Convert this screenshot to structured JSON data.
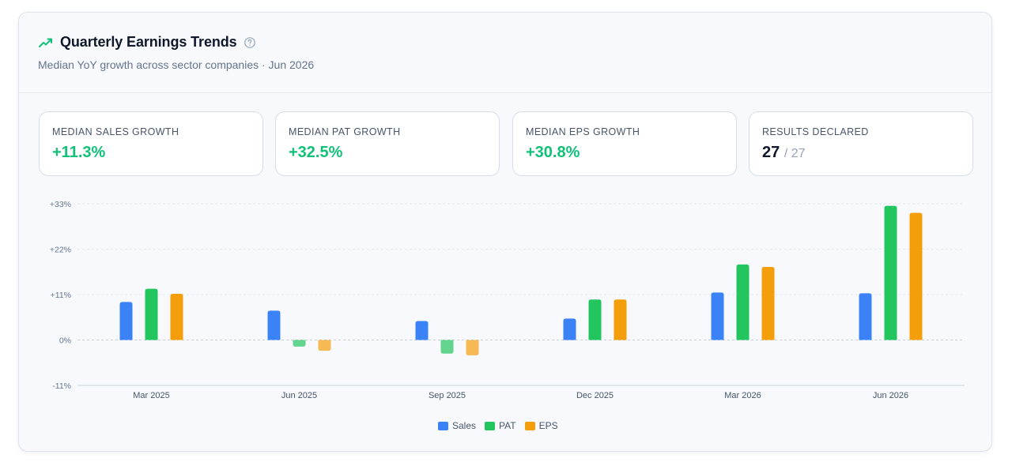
{
  "header": {
    "title": "Quarterly Earnings Trends",
    "subtitle": "Median YoY growth across sector companies · Jun 2026",
    "icon": "trending-up-icon",
    "help_icon": "help-circle-icon"
  },
  "stats": [
    {
      "label": "MEDIAN SALES GROWTH",
      "value": "+11.3%"
    },
    {
      "label": "MEDIAN PAT GROWTH",
      "value": "+32.5%"
    },
    {
      "label": "MEDIAN EPS GROWTH",
      "value": "+30.8%"
    },
    {
      "label": "RESULTS DECLARED",
      "value": "27",
      "total": "/ 27"
    }
  ],
  "colors": {
    "accent": "#10c177",
    "sales": "#3b82f6",
    "pat": "#22c55e",
    "eps": "#f59e0b"
  },
  "chart_data": {
    "type": "bar",
    "categories": [
      "Mar 2025",
      "Jun 2025",
      "Sep 2025",
      "Dec 2025",
      "Mar 2026",
      "Jun 2026"
    ],
    "series": [
      {
        "name": "Sales",
        "color": "#3b82f6",
        "values": [
          9.2,
          7.1,
          4.6,
          5.2,
          11.5,
          11.3
        ]
      },
      {
        "name": "PAT",
        "color": "#22c55e",
        "values": [
          12.4,
          -1.6,
          -3.3,
          9.8,
          18.3,
          32.5
        ]
      },
      {
        "name": "EPS",
        "color": "#f59e0b",
        "values": [
          11.2,
          -2.6,
          -3.7,
          9.8,
          17.7,
          30.8
        ]
      }
    ],
    "y_ticks": [
      "+33%",
      "+22%",
      "+11%",
      "0%",
      "-11%"
    ],
    "y_tick_values": [
      33,
      22,
      11,
      0,
      -11
    ],
    "ylim": [
      -11,
      33
    ],
    "grid": true,
    "legend_position": "bottom-center"
  }
}
